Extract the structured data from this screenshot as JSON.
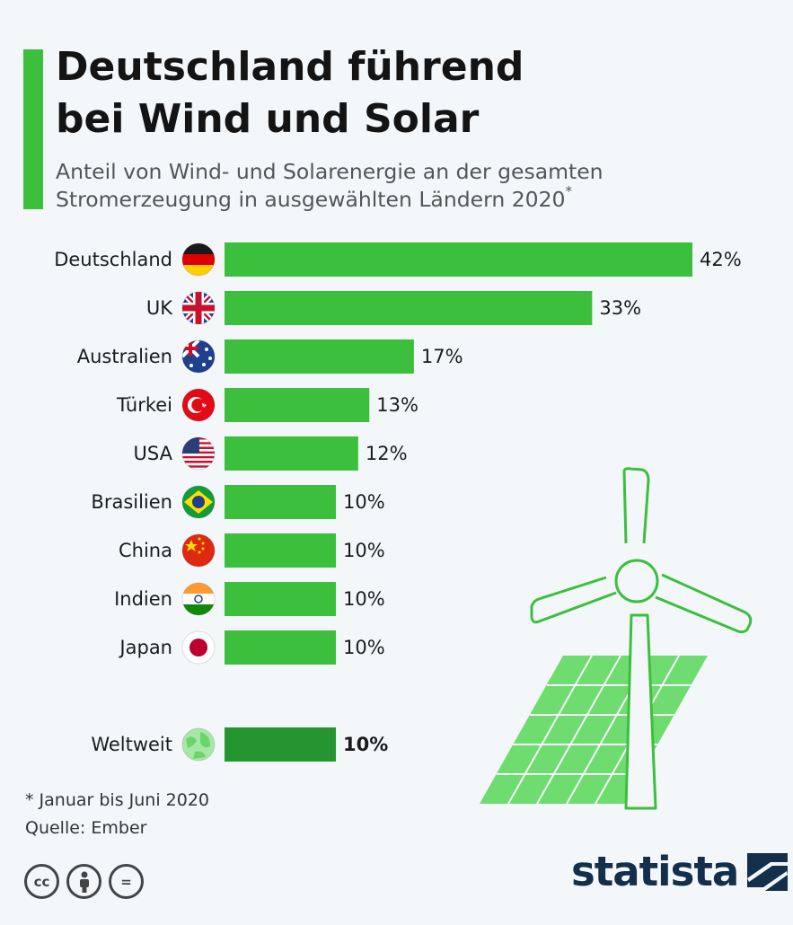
{
  "header": {
    "title_line1": "Deutschland führend",
    "title_line2": "bei Wind und Solar",
    "subtitle_line1": "Anteil von Wind- und Solarenergie an der gesamten",
    "subtitle_line2": "Stromerzeugung in ausgewählten Ländern 2020",
    "subtitle_mark": "*"
  },
  "chart_data": {
    "type": "bar",
    "orientation": "horizontal",
    "title": "Deutschland führend bei Wind und Solar",
    "subtitle": "Anteil von Wind- und Solarenergie an der gesamten Stromerzeugung in ausgewählten Ländern 2020*",
    "categories": [
      "Deutschland",
      "UK",
      "Australien",
      "Türkei",
      "USA",
      "Brasilien",
      "China",
      "Indien",
      "Japan",
      "Weltweit"
    ],
    "values": [
      42,
      33,
      17,
      13,
      12,
      10,
      10,
      10,
      10,
      10
    ],
    "value_labels": [
      "42%",
      "33%",
      "17%",
      "13%",
      "12%",
      "10%",
      "10%",
      "10%",
      "10%",
      "10%"
    ],
    "unit": "%",
    "icons": [
      "germany-flag-icon",
      "uk-flag-icon",
      "australia-flag-icon",
      "turkey-flag-icon",
      "usa-flag-icon",
      "brazil-flag-icon",
      "china-flag-icon",
      "india-flag-icon",
      "japan-flag-icon",
      "globe-icon"
    ],
    "highlight": "Weltweit",
    "colors": {
      "bar": "#3cbf3c",
      "highlight_bar": "#25962f",
      "accent": "#3cbf3c"
    },
    "grid": false,
    "legend": "none"
  },
  "footer": {
    "footnote": "* Januar bis Juni 2020",
    "source": "Quelle: Ember",
    "brand": "statista",
    "license_icons": [
      "cc-icon",
      "attribution-icon",
      "no-derivatives-icon"
    ],
    "license_cc": "cc",
    "license_nd": "="
  },
  "decoration": [
    "wind-turbine-icon",
    "solar-panel-icon"
  ]
}
